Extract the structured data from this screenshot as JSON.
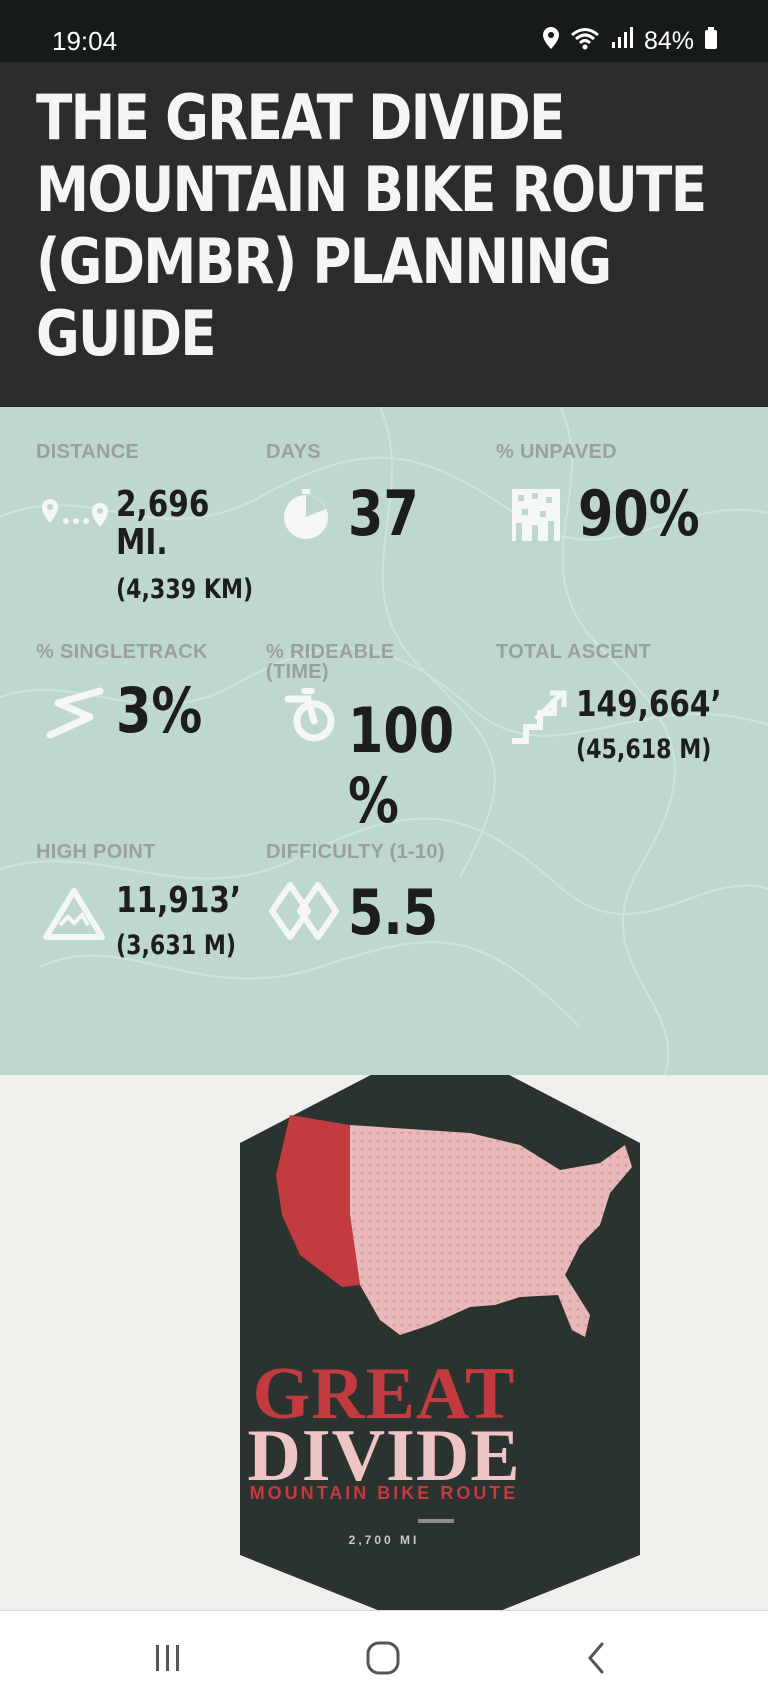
{
  "status_bar": {
    "time": "19:04",
    "battery": "84%",
    "icons": [
      "location-icon",
      "wifi-icon",
      "signal-icon",
      "battery-icon"
    ]
  },
  "header": {
    "title_lines": [
      "THE GREAT DIVIDE",
      "MOUNTAIN BIKE ROUTE",
      "(GDMBR) PLANNING",
      "GUIDE"
    ]
  },
  "stats": {
    "distance": {
      "label": "DISTANCE",
      "value_line1": "2,696",
      "value_line2": "MI.",
      "sub": "(4,339 KM)",
      "icon": "map-pins-icon"
    },
    "days": {
      "label": "DAYS",
      "value": "37",
      "icon": "timer-icon"
    },
    "unpaved": {
      "label": "% UNPAVED",
      "value": "90%",
      "icon": "gravel-icon"
    },
    "singletrack": {
      "label": "% SINGLETRACK",
      "value": "3%",
      "icon": "trail-icon"
    },
    "rideable": {
      "label_line1": "% RIDEABLE",
      "label_line2": "(TIME)",
      "value_line1": "100",
      "value_line2": "%",
      "icon": "bike-wheel-icon"
    },
    "ascent": {
      "label": "TOTAL ASCENT",
      "value": "149,664’",
      "sub": "(45,618 M)",
      "icon": "stairs-icon"
    },
    "high_point": {
      "label": "HIGH POINT",
      "value": "11,913’",
      "sub": "(3,631 M)",
      "icon": "mountain-icon"
    },
    "difficulty": {
      "label": "DIFFICULTY (1-10)",
      "value": "5.5",
      "icon": "double-diamond-icon"
    }
  },
  "badge": {
    "title_line1": "GREAT",
    "title_line2": "DIVIDE",
    "subtitle": "MOUNTAIN BIKE ROUTE",
    "distance": "2,700 MI",
    "colors": {
      "dark": "#2b3330",
      "red": "#c33b3e",
      "pink": "#e9b8b8"
    }
  },
  "nav_bar": {
    "buttons": [
      "recent-apps-icon",
      "home-icon",
      "back-icon"
    ]
  },
  "colors": {
    "header_bg": "#2c2c2c",
    "stats_bg": "#bed8cf",
    "status_bg": "#161a19"
  }
}
